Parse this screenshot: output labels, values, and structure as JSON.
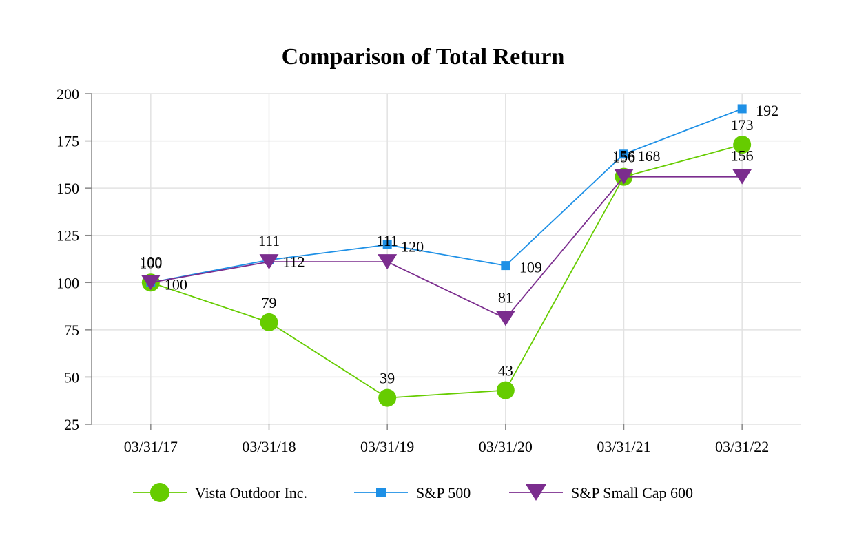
{
  "chart_data": {
    "type": "line",
    "title": "Comparison of Total Return",
    "xlabel": "",
    "ylabel": "",
    "categories": [
      "03/31/17",
      "03/31/18",
      "03/31/19",
      "03/31/20",
      "03/31/21",
      "03/31/22"
    ],
    "ylim": [
      25,
      200
    ],
    "yticks": [
      200,
      175,
      150,
      125,
      100,
      75,
      50,
      25
    ],
    "grid": true,
    "legend_position": "bottom",
    "series": [
      {
        "name": "Vista Outdoor Inc.",
        "color": "#66cc00",
        "marker": "circle",
        "values": [
          100,
          79,
          39,
          43,
          156,
          173
        ],
        "labels": [
          "100",
          "79",
          "39",
          "43",
          "156",
          "173"
        ]
      },
      {
        "name": "S&P 500",
        "color": "#1e90e6",
        "marker": "square",
        "values": [
          100,
          112,
          120,
          109,
          168,
          192
        ],
        "labels": [
          "100",
          "112",
          "120",
          "109",
          "168",
          "192"
        ]
      },
      {
        "name": "S&P Small Cap 600",
        "color": "#7b2d8e",
        "marker": "triangle-down",
        "values": [
          100,
          111,
          111,
          81,
          156,
          156
        ],
        "labels": [
          "100",
          "111",
          "111",
          "81",
          "156",
          "156"
        ]
      }
    ]
  }
}
